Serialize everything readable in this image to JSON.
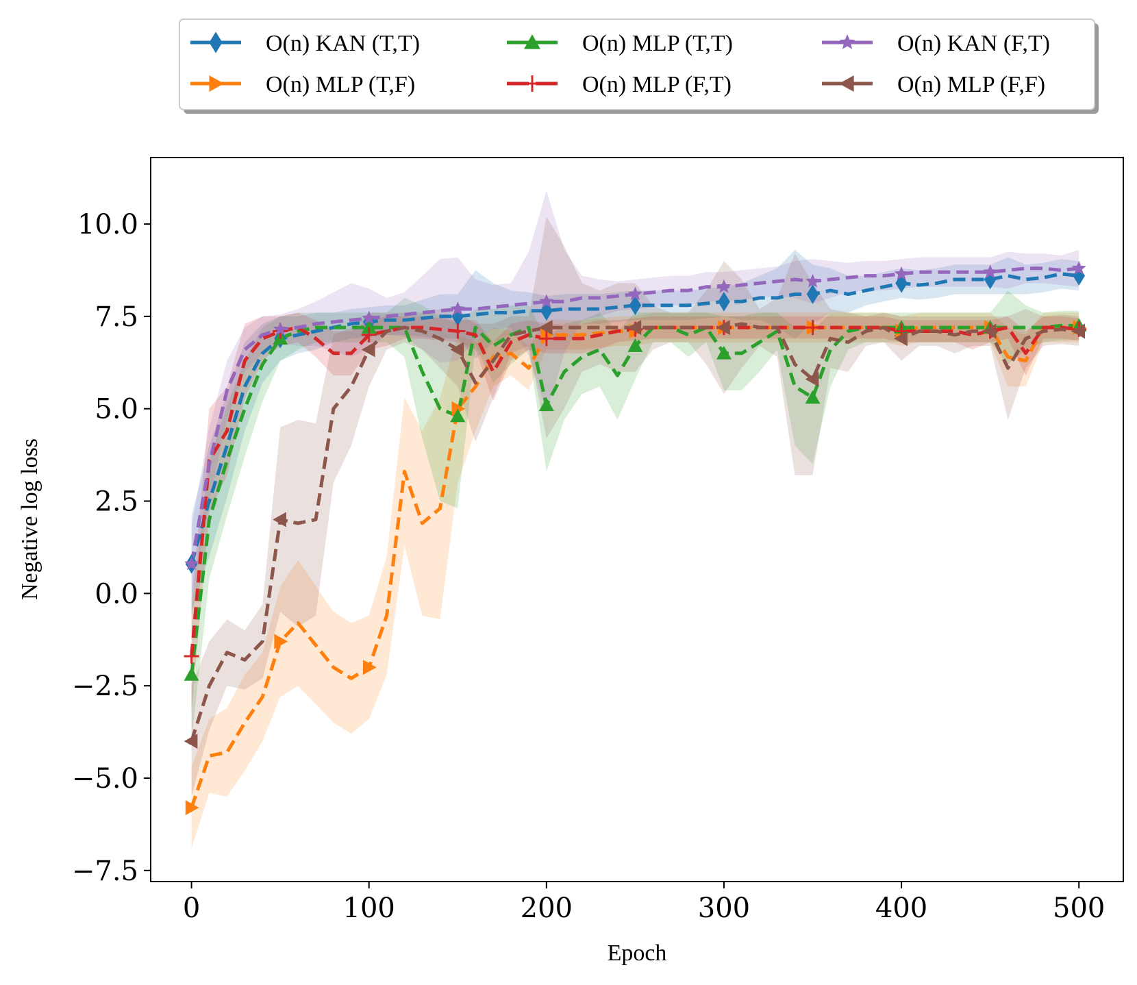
{
  "chart_data": {
    "type": "line",
    "title": "",
    "xlabel": "Epoch",
    "ylabel": "Negative log loss",
    "xlim": [
      -23,
      525
    ],
    "ylim": [
      -7.8,
      11.8
    ],
    "xticks": [
      0,
      100,
      200,
      300,
      400,
      500
    ],
    "xtick_labels": [
      "0",
      "100",
      "200",
      "300",
      "400",
      "500"
    ],
    "yticks": [
      -7.5,
      -5.0,
      -2.5,
      0.0,
      2.5,
      5.0,
      7.5,
      10.0
    ],
    "ytick_labels": [
      "−7.5",
      "−5.0",
      "−2.5",
      "0.0",
      "2.5",
      "5.0",
      "7.5",
      "10.0"
    ],
    "legend_position": "top-center, above plot (3 columns)",
    "x": [
      0,
      10,
      20,
      30,
      40,
      50,
      60,
      70,
      80,
      90,
      100,
      110,
      120,
      130,
      140,
      150,
      160,
      170,
      180,
      190,
      200,
      210,
      220,
      230,
      240,
      250,
      260,
      270,
      280,
      290,
      300,
      310,
      320,
      330,
      340,
      350,
      360,
      370,
      380,
      390,
      400,
      410,
      420,
      430,
      440,
      450,
      460,
      470,
      480,
      490,
      500
    ],
    "series": [
      {
        "name": "O(n) KAN (T,T)",
        "color": "#1f77b4",
        "marker": "diamond",
        "values": [
          0.8,
          2.5,
          4.0,
          5.6,
          6.5,
          6.9,
          7.0,
          7.1,
          7.2,
          7.3,
          7.35,
          7.4,
          7.4,
          7.45,
          7.5,
          7.5,
          7.55,
          7.6,
          7.6,
          7.65,
          7.65,
          7.7,
          7.7,
          7.7,
          7.75,
          7.8,
          7.8,
          7.8,
          7.8,
          7.85,
          7.9,
          7.9,
          8.0,
          8.0,
          8.1,
          8.1,
          8.2,
          8.1,
          8.2,
          8.3,
          8.4,
          8.35,
          8.4,
          8.5,
          8.5,
          8.5,
          8.6,
          8.5,
          8.55,
          8.65,
          8.6
        ],
        "band": [
          1.3,
          1.5,
          1.4,
          1.2,
          0.8,
          0.6,
          0.5,
          0.5,
          0.4,
          0.4,
          0.4,
          0.4,
          0.4,
          0.5,
          0.6,
          0.6,
          1.2,
          0.8,
          0.6,
          0.5,
          0.4,
          0.4,
          0.4,
          0.4,
          0.4,
          0.4,
          0.4,
          0.4,
          0.4,
          0.4,
          0.4,
          0.5,
          0.6,
          0.8,
          1.2,
          0.8,
          0.6,
          0.5,
          0.4,
          0.4,
          0.4,
          0.4,
          0.4,
          0.4,
          0.4,
          0.4,
          0.5,
          0.4,
          0.4,
          0.4,
          0.4
        ]
      },
      {
        "name": "O(n) MLP (T,F)",
        "color": "#ff7f0e",
        "marker": "triangle-right",
        "values": [
          -5.8,
          -4.4,
          -4.3,
          -3.5,
          -2.8,
          -1.3,
          -0.8,
          -1.4,
          -2.0,
          -2.3,
          -2.0,
          -0.6,
          3.3,
          1.9,
          2.3,
          5.0,
          5.6,
          6.4,
          6.5,
          6.1,
          7.0,
          7.0,
          7.0,
          7.05,
          7.1,
          7.1,
          7.2,
          7.2,
          7.2,
          7.2,
          7.2,
          7.2,
          7.2,
          7.2,
          7.2,
          7.2,
          7.2,
          7.2,
          7.2,
          7.2,
          7.1,
          7.2,
          7.2,
          7.2,
          7.2,
          7.2,
          6.4,
          6.3,
          7.2,
          7.2,
          7.2
        ],
        "band": [
          1.1,
          1.0,
          1.2,
          1.3,
          1.2,
          1.5,
          1.7,
          1.6,
          1.5,
          1.5,
          1.4,
          1.6,
          2.0,
          2.5,
          3.0,
          2.0,
          1.2,
          0.8,
          0.6,
          0.6,
          0.4,
          0.4,
          0.4,
          0.4,
          0.4,
          0.4,
          0.4,
          0.4,
          0.4,
          0.4,
          0.4,
          0.4,
          0.4,
          0.4,
          0.4,
          0.4,
          0.4,
          0.4,
          0.4,
          0.4,
          0.4,
          0.4,
          0.4,
          0.4,
          0.4,
          0.4,
          0.8,
          0.7,
          0.4,
          0.4,
          0.4
        ]
      },
      {
        "name": "O(n) MLP (T,T)",
        "color": "#2ca02c",
        "marker": "triangle-up",
        "values": [
          -2.2,
          2.0,
          3.6,
          5.0,
          6.2,
          6.9,
          7.1,
          7.2,
          7.2,
          7.2,
          7.2,
          7.2,
          7.2,
          6.0,
          5.0,
          4.8,
          7.2,
          6.7,
          7.0,
          7.2,
          5.1,
          6.0,
          6.4,
          6.6,
          5.9,
          6.7,
          7.2,
          7.2,
          7.0,
          7.2,
          6.5,
          6.5,
          6.8,
          7.1,
          5.6,
          5.3,
          6.6,
          7.1,
          7.2,
          7.2,
          7.2,
          7.2,
          7.2,
          7.2,
          7.2,
          7.2,
          7.2,
          7.2,
          7.2,
          7.25,
          7.25
        ],
        "band": [
          1.8,
          1.6,
          1.5,
          1.3,
          1.0,
          0.6,
          0.5,
          0.4,
          0.4,
          0.4,
          0.4,
          0.4,
          0.8,
          1.8,
          2.5,
          2.5,
          0.5,
          1.0,
          0.8,
          0.6,
          1.8,
          1.3,
          1.0,
          1.0,
          1.2,
          0.9,
          0.4,
          0.4,
          0.6,
          0.4,
          1.0,
          1.0,
          0.8,
          0.5,
          1.6,
          1.8,
          1.0,
          0.5,
          0.4,
          0.4,
          0.4,
          0.4,
          0.4,
          0.4,
          0.4,
          0.4,
          1.0,
          0.6,
          0.4,
          0.4,
          0.4
        ]
      },
      {
        "name": "O(n) MLP (F,T)",
        "color": "#d62728",
        "marker": "plus",
        "values": [
          -1.7,
          3.6,
          4.4,
          6.3,
          6.9,
          7.1,
          7.2,
          6.9,
          6.5,
          6.5,
          7.0,
          7.1,
          7.2,
          7.2,
          7.15,
          7.1,
          7.0,
          6.0,
          6.8,
          7.0,
          6.9,
          6.9,
          6.9,
          7.0,
          7.1,
          7.15,
          7.2,
          7.2,
          7.2,
          7.2,
          7.2,
          7.2,
          7.2,
          7.2,
          7.2,
          7.2,
          7.2,
          7.2,
          7.2,
          7.2,
          7.1,
          7.1,
          7.1,
          7.1,
          7.0,
          7.1,
          7.2,
          6.5,
          7.2,
          7.2,
          7.15
        ],
        "band": [
          1.5,
          1.4,
          1.2,
          1.0,
          0.6,
          0.4,
          0.4,
          0.5,
          0.6,
          0.6,
          0.4,
          0.4,
          0.3,
          0.3,
          0.3,
          0.3,
          0.4,
          0.8,
          0.5,
          0.4,
          0.4,
          0.4,
          0.4,
          0.4,
          0.3,
          0.3,
          0.3,
          0.3,
          0.3,
          0.3,
          0.3,
          0.3,
          0.3,
          0.3,
          0.3,
          0.3,
          0.3,
          0.3,
          0.3,
          0.3,
          0.3,
          0.3,
          0.3,
          0.3,
          0.4,
          0.3,
          0.3,
          0.6,
          0.3,
          0.3,
          0.3
        ]
      },
      {
        "name": "O(n) KAN (F,T)",
        "color": "#9467bd",
        "marker": "star",
        "values": [
          0.8,
          3.5,
          5.5,
          6.6,
          7.0,
          7.15,
          7.2,
          7.3,
          7.35,
          7.4,
          7.45,
          7.5,
          7.55,
          7.6,
          7.65,
          7.7,
          7.7,
          7.75,
          7.8,
          7.85,
          7.9,
          7.9,
          8.0,
          8.0,
          8.05,
          8.1,
          8.15,
          8.2,
          8.2,
          8.3,
          8.3,
          8.35,
          8.4,
          8.45,
          8.5,
          8.45,
          8.5,
          8.55,
          8.6,
          8.6,
          8.65,
          8.7,
          8.7,
          8.7,
          8.7,
          8.7,
          8.75,
          8.8,
          8.8,
          8.75,
          8.8
        ],
        "band": [
          1.0,
          1.0,
          0.8,
          0.6,
          0.5,
          0.4,
          0.5,
          0.6,
          0.8,
          1.0,
          0.8,
          0.5,
          0.6,
          1.0,
          1.4,
          1.4,
          0.8,
          0.6,
          0.6,
          1.4,
          3.0,
          1.4,
          0.6,
          0.5,
          0.4,
          0.4,
          0.4,
          0.4,
          0.4,
          0.4,
          0.4,
          0.4,
          0.4,
          0.4,
          0.5,
          0.6,
          0.5,
          0.4,
          0.4,
          0.4,
          0.4,
          0.4,
          0.4,
          0.4,
          0.4,
          0.4,
          0.5,
          0.4,
          0.4,
          0.4,
          0.5
        ]
      },
      {
        "name": "O(n) MLP (F,F)",
        "color": "#8c564b",
        "marker": "triangle-left",
        "values": [
          -4.0,
          -2.5,
          -1.6,
          -1.8,
          -1.3,
          2.0,
          1.9,
          2.0,
          5.0,
          5.6,
          6.6,
          7.1,
          7.2,
          7.1,
          6.9,
          6.6,
          5.7,
          6.3,
          7.0,
          7.1,
          7.2,
          7.2,
          7.2,
          7.2,
          7.2,
          7.2,
          7.2,
          7.2,
          7.2,
          7.2,
          7.2,
          7.3,
          7.2,
          7.2,
          6.2,
          5.8,
          6.9,
          6.8,
          7.1,
          7.2,
          6.9,
          7.1,
          7.1,
          7.0,
          7.1,
          7.1,
          6.1,
          6.9,
          7.1,
          7.15,
          7.1
        ],
        "band": [
          1.5,
          1.2,
          0.9,
          0.8,
          1.0,
          2.5,
          2.8,
          2.6,
          2.0,
          1.6,
          1.0,
          0.5,
          0.4,
          0.5,
          0.8,
          1.0,
          1.6,
          1.0,
          0.5,
          0.4,
          3.0,
          2.2,
          1.2,
          1.0,
          1.2,
          1.2,
          0.6,
          0.4,
          0.4,
          1.0,
          1.8,
          1.2,
          0.5,
          0.8,
          3.0,
          2.6,
          0.8,
          0.8,
          0.4,
          0.4,
          0.6,
          0.4,
          0.4,
          0.5,
          0.4,
          0.4,
          1.4,
          0.8,
          0.4,
          0.4,
          0.4
        ]
      }
    ]
  }
}
